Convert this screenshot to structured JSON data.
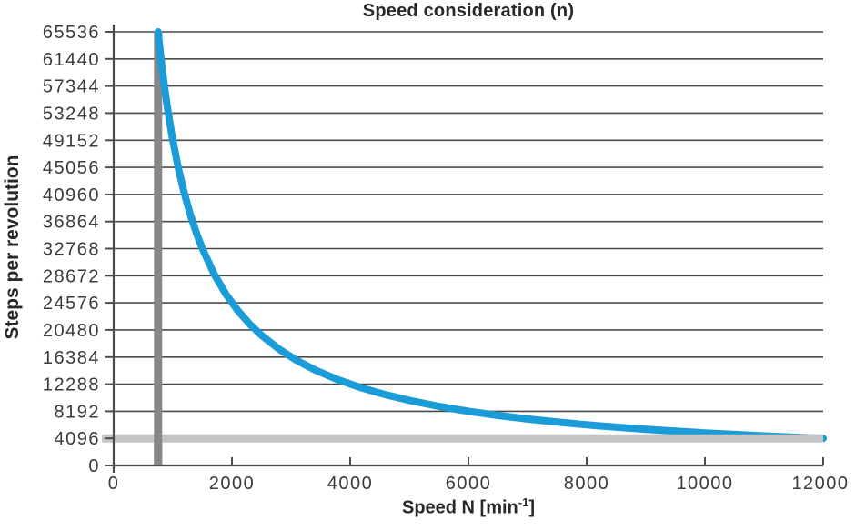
{
  "chart_data": {
    "type": "line",
    "title": "Speed consideration (n)",
    "ylabel": "Steps per revolution",
    "xlabel": "Speed N [min⁻¹]",
    "xlabel_parts": {
      "main": "Speed N [min",
      "sup": "-1",
      "close": "]"
    },
    "xlim": [
      0,
      12000
    ],
    "ylim": [
      0,
      65536
    ],
    "x_ticks": [
      0,
      2000,
      4000,
      6000,
      8000,
      10000,
      12000
    ],
    "y_ticks": [
      0,
      4096,
      8192,
      12288,
      16384,
      20480,
      24576,
      28672,
      32768,
      36864,
      40960,
      45056,
      49152,
      53248,
      57344,
      61440,
      65536
    ],
    "grid": "horizontal",
    "legend": "none",
    "colors": {
      "curve": "#1a9cd8",
      "vertical_marker": "#87878a",
      "horizontal_marker": "#c5c5c7",
      "grid": "#4b4b4e",
      "axis": "#4b4b4e",
      "tick_text": "#3a3a3e",
      "title_text": "#28282c"
    },
    "series": [
      {
        "name": "steps-per-revolution-vs-speed",
        "color": "#1a9cd8",
        "formula": "steps = 49152000 / N",
        "points": [
          [
            750,
            65536
          ],
          [
            800,
            61440
          ],
          [
            850,
            57825.9
          ],
          [
            900,
            54613.3
          ],
          [
            950,
            51738.9
          ],
          [
            1000,
            49152
          ],
          [
            1100,
            44683.6
          ],
          [
            1200,
            40960
          ],
          [
            1300,
            37809.2
          ],
          [
            1400,
            35108.6
          ],
          [
            1500,
            32768
          ],
          [
            1700,
            28912.9
          ],
          [
            1900,
            25869.5
          ],
          [
            2100,
            23405.7
          ],
          [
            2300,
            21370.4
          ],
          [
            2500,
            19660.8
          ],
          [
            2800,
            17554.3
          ],
          [
            3100,
            15855.5
          ],
          [
            3400,
            14456.5
          ],
          [
            3800,
            12934.7
          ],
          [
            4200,
            11702.9
          ],
          [
            4600,
            10685.2
          ],
          [
            5000,
            9830.4
          ],
          [
            5500,
            8936.7
          ],
          [
            6000,
            8192
          ],
          [
            6500,
            7561.8
          ],
          [
            7000,
            7021.7
          ],
          [
            7600,
            6467.4
          ],
          [
            8200,
            5994.1
          ],
          [
            9000,
            5461.3
          ],
          [
            10000,
            4915.2
          ],
          [
            11000,
            4468.4
          ],
          [
            12000,
            4096
          ]
        ]
      }
    ],
    "reference_lines": [
      {
        "name": "min-speed-marker",
        "orientation": "vertical",
        "x": 750,
        "color": "#87878a"
      },
      {
        "name": "min-resolution-marker",
        "orientation": "horizontal",
        "y": 4096,
        "color": "#c5c5c7"
      }
    ]
  }
}
